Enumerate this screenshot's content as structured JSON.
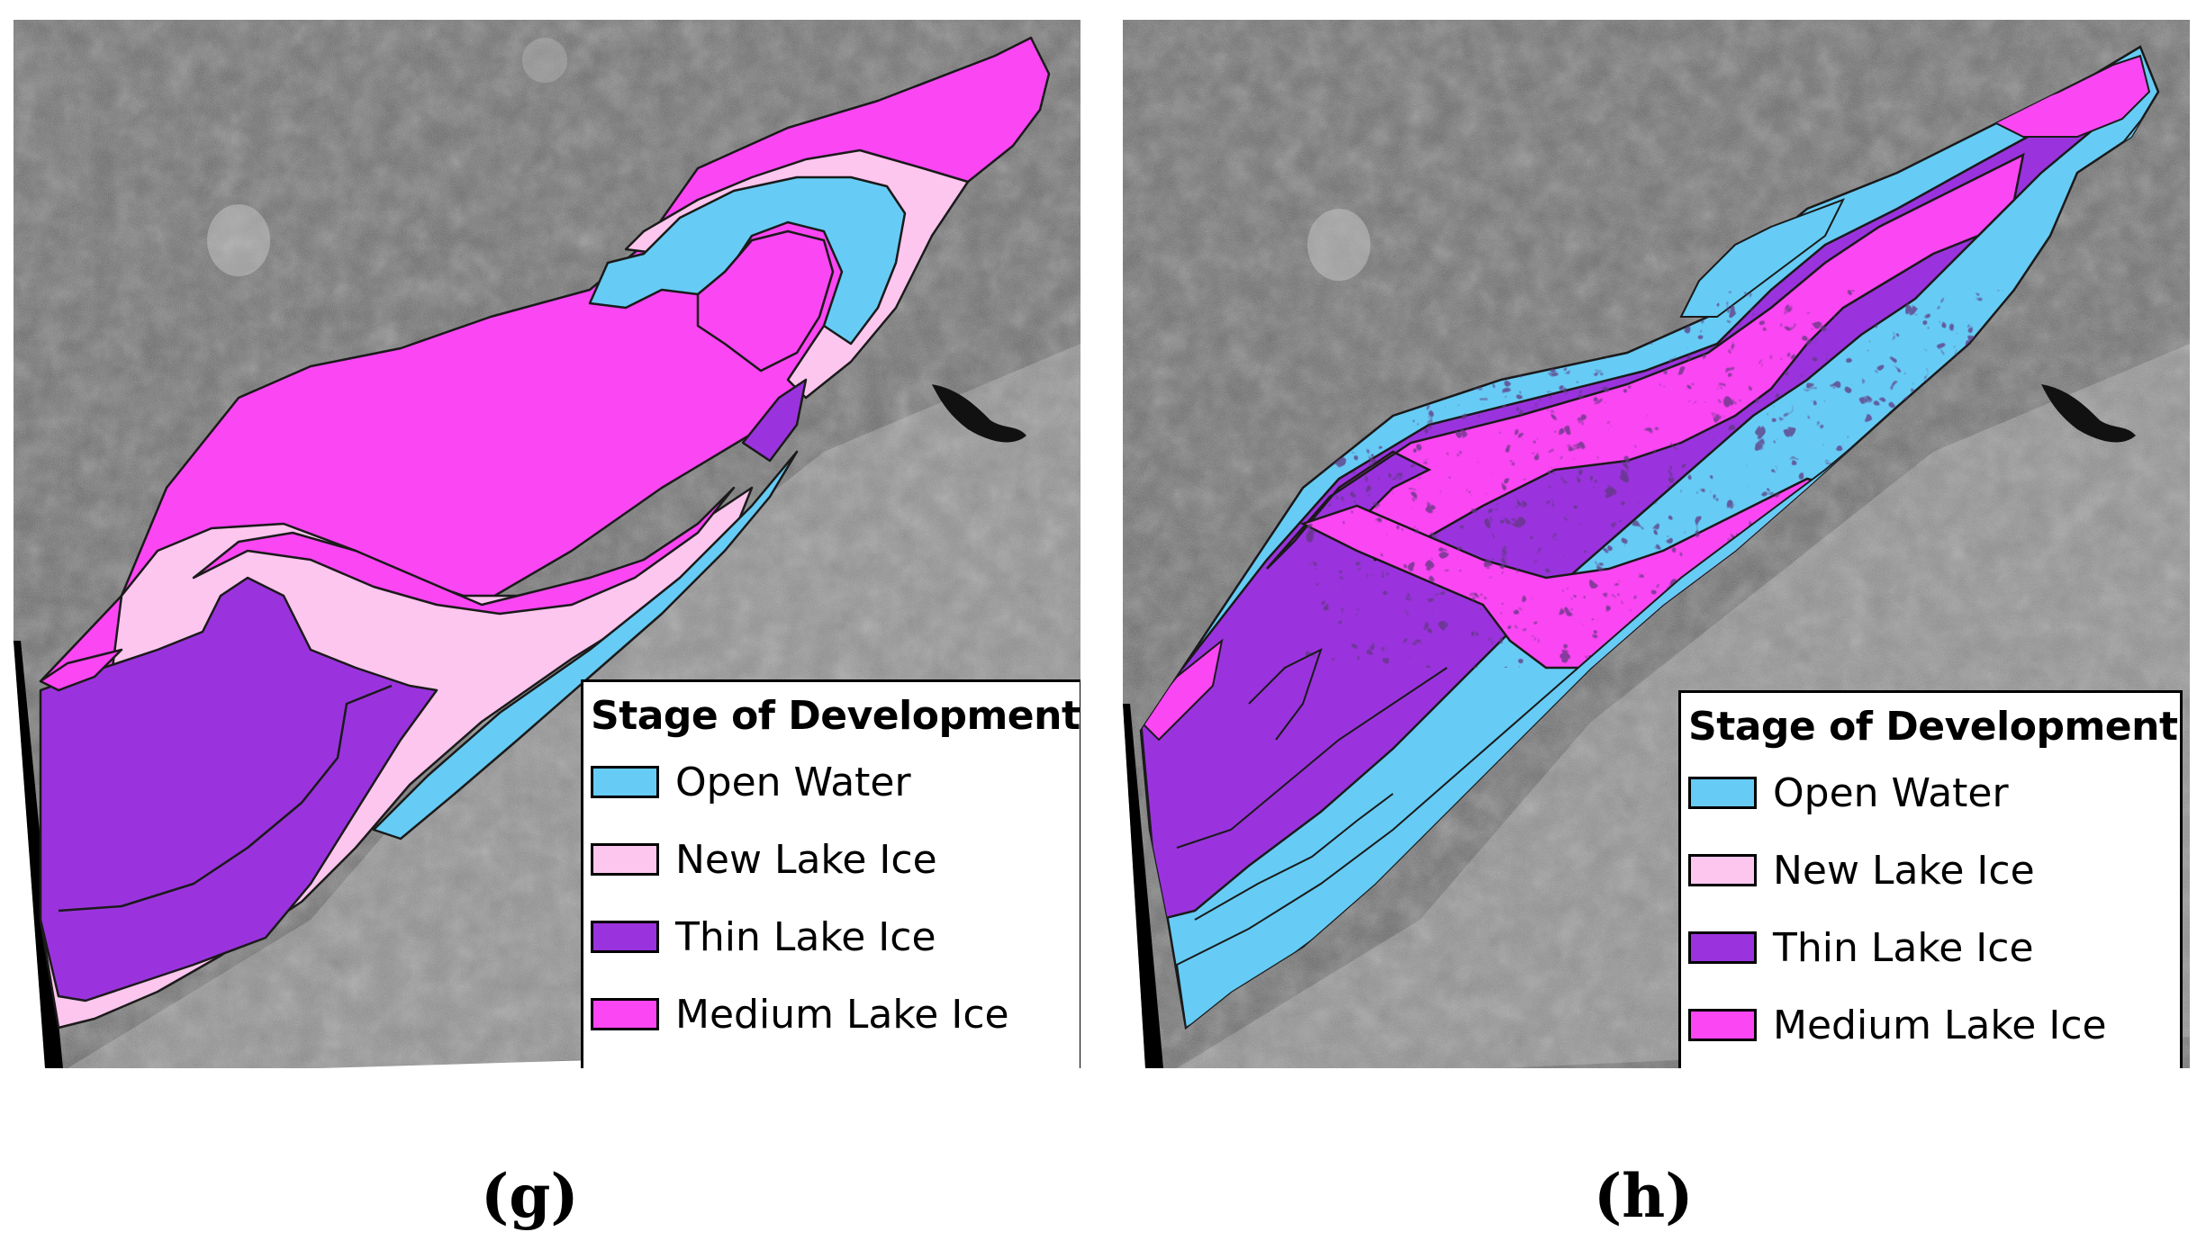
{
  "colors": {
    "open_water": "#66ccf5",
    "new_lake_ice": "#fcc6ee",
    "thin_lake_ice": "#9a33dd",
    "medium_lake_ice": "#fb46f3",
    "background_imagery": "#6f6f6f",
    "outline": "#1a1a1a"
  },
  "panels": [
    {
      "id": "g",
      "caption": "(g)",
      "legend": {
        "title": "Stage of Development",
        "items": [
          {
            "label": "Open Water",
            "color": "#66ccf5"
          },
          {
            "label": "New Lake Ice",
            "color": "#fcc6ee"
          },
          {
            "label": "Thin Lake Ice",
            "color": "#9a33dd"
          },
          {
            "label": "Medium Lake Ice",
            "color": "#fb46f3"
          }
        ]
      }
    },
    {
      "id": "h",
      "caption": "(h)",
      "legend": {
        "title": "Stage of Development",
        "items": [
          {
            "label": "Open Water",
            "color": "#66ccf5"
          },
          {
            "label": "New Lake Ice",
            "color": "#fcc6ee"
          },
          {
            "label": "Thin Lake Ice",
            "color": "#9a33dd"
          },
          {
            "label": "Medium Lake Ice",
            "color": "#fb46f3"
          }
        ]
      }
    }
  ]
}
